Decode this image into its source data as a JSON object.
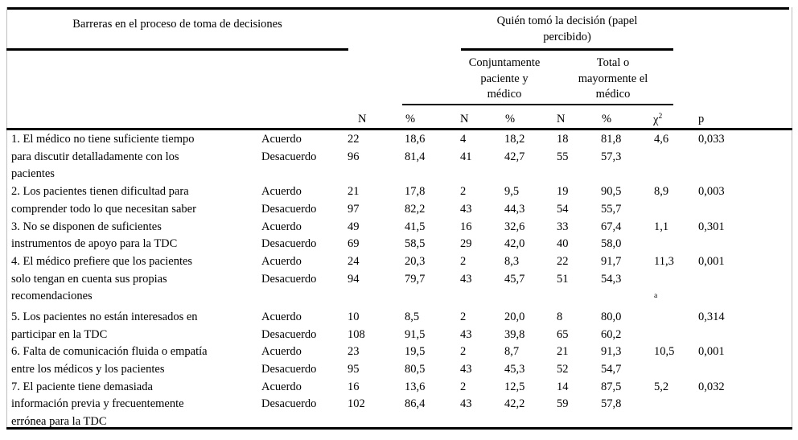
{
  "table": {
    "left_header": "Barreras en el proceso de toma de decisiones",
    "group_header": "Quién tomó la decisión (papel percibido)",
    "subgroup_joint": "Conjuntamente paciente y médico",
    "subgroup_doctor": "Total o mayormente el médico",
    "col_n": "N",
    "col_pct": "%",
    "col_chi_symbol": "χ",
    "col_chi_exp": "2",
    "col_p": "p",
    "chi_footnote_marker": "a",
    "barriers": [
      {
        "label_lines": [
          "1. El médico no tiene suficiente tiempo",
          "para discutir detalladamente con los",
          "pacientes"
        ],
        "chi_footnote_on_line3": false,
        "rows": [
          {
            "stance": "Acuerdo",
            "n": "22",
            "pct": "18,6",
            "n_joint": "4",
            "pct_joint": "18,2",
            "n_doctor": "18",
            "pct_doctor": "81,8",
            "chi": "4,6",
            "p": "0,033"
          },
          {
            "stance": "Desacuerdo",
            "n": "96",
            "pct": "81,4",
            "n_joint": "41",
            "pct_joint": "42,7",
            "n_doctor": "55",
            "pct_doctor": "57,3",
            "chi": "",
            "p": ""
          }
        ]
      },
      {
        "label_lines": [
          "2. Los pacientes tienen dificultad para",
          "comprender todo lo que necesitan saber"
        ],
        "chi_footnote_on_line3": false,
        "rows": [
          {
            "stance": "Acuerdo",
            "n": "21",
            "pct": "17,8",
            "n_joint": "2",
            "pct_joint": "9,5",
            "n_doctor": "19",
            "pct_doctor": "90,5",
            "chi": "8,9",
            "p": "0,003"
          },
          {
            "stance": "Desacuerdo",
            "n": "97",
            "pct": "82,2",
            "n_joint": "43",
            "pct_joint": "44,3",
            "n_doctor": "54",
            "pct_doctor": "55,7",
            "chi": "",
            "p": ""
          }
        ]
      },
      {
        "label_lines": [
          "3. No se disponen de suficientes",
          "instrumentos de apoyo para la TDC"
        ],
        "chi_footnote_on_line3": false,
        "rows": [
          {
            "stance": "Acuerdo",
            "n": "49",
            "pct": "41,5",
            "n_joint": "16",
            "pct_joint": "32,6",
            "n_doctor": "33",
            "pct_doctor": "67,4",
            "chi": "1,1",
            "p": "0,301"
          },
          {
            "stance": "Desacuerdo",
            "n": "69",
            "pct": "58,5",
            "n_joint": "29",
            "pct_joint": "42,0",
            "n_doctor": "40",
            "pct_doctor": "58,0",
            "chi": "",
            "p": ""
          }
        ]
      },
      {
        "label_lines": [
          "4. El médico prefiere que los pacientes",
          "solo tengan en cuenta sus propias",
          "recomendaciones"
        ],
        "chi_footnote_on_line3": true,
        "rows": [
          {
            "stance": "Acuerdo",
            "n": "24",
            "pct": "20,3",
            "n_joint": "2",
            "pct_joint": "8,3",
            "n_doctor": "22",
            "pct_doctor": "91,7",
            "chi": "11,3",
            "p": "0,001"
          },
          {
            "stance": "Desacuerdo",
            "n": "94",
            "pct": "79,7",
            "n_joint": "43",
            "pct_joint": "45,7",
            "n_doctor": "51",
            "pct_doctor": "54,3",
            "chi": "",
            "p": ""
          }
        ]
      },
      {
        "label_lines": [
          "5. Los pacientes no están interesados en",
          "participar en la TDC"
        ],
        "chi_footnote_on_line3": false,
        "rows": [
          {
            "stance": "Acuerdo",
            "n": "10",
            "pct": "8,5",
            "n_joint": "2",
            "pct_joint": "20,0",
            "n_doctor": "8",
            "pct_doctor": "80,0",
            "chi": "",
            "p": "0,314"
          },
          {
            "stance": "Desacuerdo",
            "n": "108",
            "pct": "91,5",
            "n_joint": "43",
            "pct_joint": "39,8",
            "n_doctor": "65",
            "pct_doctor": "60,2",
            "chi": "",
            "p": ""
          }
        ]
      },
      {
        "label_lines": [
          "6. Falta de comunicación fluida o empatía",
          "entre los médicos y los pacientes"
        ],
        "chi_footnote_on_line3": false,
        "rows": [
          {
            "stance": "Acuerdo",
            "n": "23",
            "pct": "19,5",
            "n_joint": "2",
            "pct_joint": "8,7",
            "n_doctor": "21",
            "pct_doctor": "91,3",
            "chi": "10,5",
            "p": "0,001"
          },
          {
            "stance": "Desacuerdo",
            "n": "95",
            "pct": "80,5",
            "n_joint": "43",
            "pct_joint": "45,3",
            "n_doctor": "52",
            "pct_doctor": "54,7",
            "chi": "",
            "p": ""
          }
        ]
      },
      {
        "label_lines": [
          "7. El paciente tiene demasiada",
          "información previa y frecuentemente",
          "errónea para la TDC"
        ],
        "chi_footnote_on_line3": false,
        "rows": [
          {
            "stance": "Acuerdo",
            "n": "16",
            "pct": "13,6",
            "n_joint": "2",
            "pct_joint": "12,5",
            "n_doctor": "14",
            "pct_doctor": "87,5",
            "chi": "5,2",
            "p": "0,032"
          },
          {
            "stance": "Desacuerdo",
            "n": "102",
            "pct": "86,4",
            "n_joint": "43",
            "pct_joint": "42,2",
            "n_doctor": "59",
            "pct_doctor": "57,8",
            "chi": "",
            "p": ""
          }
        ]
      }
    ]
  }
}
